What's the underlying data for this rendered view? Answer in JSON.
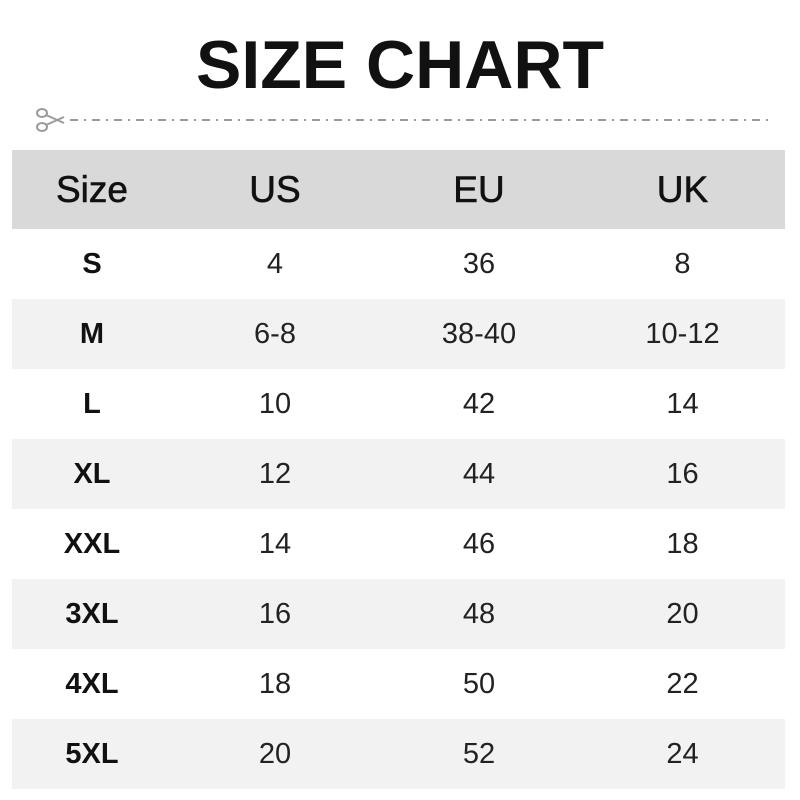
{
  "title": "SIZE CHART",
  "cut_icon": "scissors-icon",
  "colors": {
    "header_bg": "#d9d9d9",
    "alt_row_bg": "#f2f2f2",
    "dash": "#9a9a9a"
  },
  "table": {
    "headers": [
      "Size",
      "US",
      "EU",
      "UK"
    ],
    "rows": [
      [
        "S",
        "4",
        "36",
        "8"
      ],
      [
        "M",
        "6-8",
        "38-40",
        "10-12"
      ],
      [
        "L",
        "10",
        "42",
        "14"
      ],
      [
        "XL",
        "12",
        "44",
        "16"
      ],
      [
        "XXL",
        "14",
        "46",
        "18"
      ],
      [
        "3XL",
        "16",
        "48",
        "20"
      ],
      [
        "4XL",
        "18",
        "50",
        "22"
      ],
      [
        "5XL",
        "20",
        "52",
        "24"
      ]
    ]
  }
}
